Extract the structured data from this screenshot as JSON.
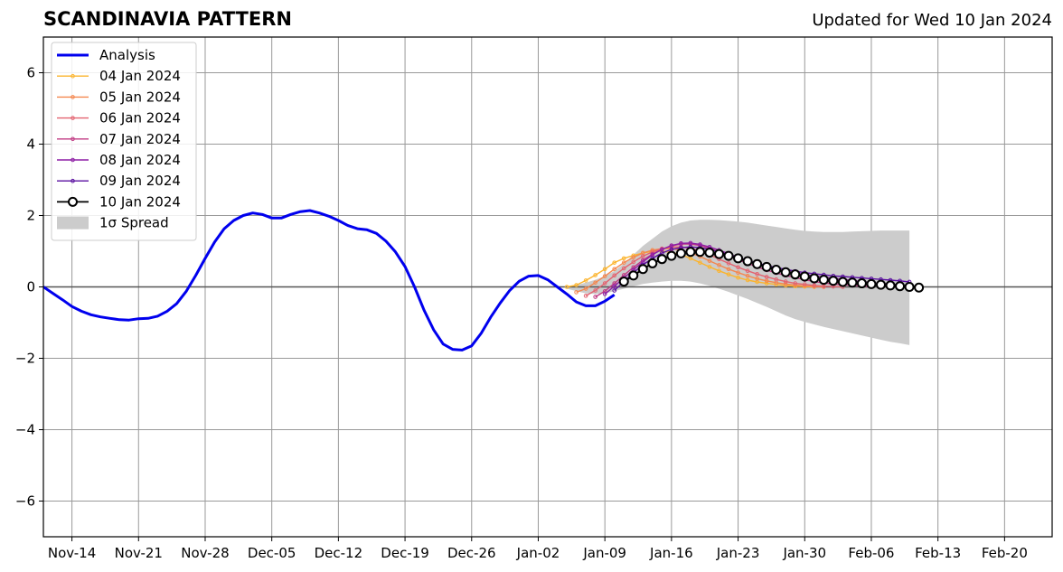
{
  "chart_data": {
    "type": "line",
    "title": "SCANDINAVIA PATTERN",
    "subtitle": "Updated for Wed 10 Jan 2024",
    "xlabel": "",
    "ylabel": "",
    "x_type": "date",
    "xlim": [
      "2023-11-11",
      "2024-02-25"
    ],
    "ylim": [
      -7,
      7
    ],
    "x_ticks": [
      {
        "date": "2023-11-14",
        "label": "Nov-14"
      },
      {
        "date": "2023-11-21",
        "label": "Nov-21"
      },
      {
        "date": "2023-11-28",
        "label": "Nov-28"
      },
      {
        "date": "2023-12-05",
        "label": "Dec-05"
      },
      {
        "date": "2023-12-12",
        "label": "Dec-12"
      },
      {
        "date": "2023-12-19",
        "label": "Dec-19"
      },
      {
        "date": "2023-12-26",
        "label": "Dec-26"
      },
      {
        "date": "2024-01-02",
        "label": "Jan-02"
      },
      {
        "date": "2024-01-09",
        "label": "Jan-09"
      },
      {
        "date": "2024-01-16",
        "label": "Jan-16"
      },
      {
        "date": "2024-01-23",
        "label": "Jan-23"
      },
      {
        "date": "2024-01-30",
        "label": "Jan-30"
      },
      {
        "date": "2024-02-06",
        "label": "Feb-06"
      },
      {
        "date": "2024-02-13",
        "label": "Feb-13"
      },
      {
        "date": "2024-02-20",
        "label": "Feb-20"
      }
    ],
    "y_ticks": [
      {
        "value": -6,
        "label": "−6"
      },
      {
        "value": -4,
        "label": "−4"
      },
      {
        "value": -2,
        "label": "−2"
      },
      {
        "value": 0,
        "label": "0"
      },
      {
        "value": 2,
        "label": "2"
      },
      {
        "value": 4,
        "label": "4"
      },
      {
        "value": 6,
        "label": "6"
      }
    ],
    "grid": true,
    "legend_position": "top-left",
    "colors": {
      "analysis": "#0000ee",
      "spread": "#cccccc",
      "forecast_10": "#000000",
      "zero_line": "#555555",
      "grid": "#999999"
    },
    "analysis": {
      "name": "Analysis",
      "x": [
        "2023-11-11",
        "2023-11-12",
        "2023-11-13",
        "2023-11-14",
        "2023-11-15",
        "2023-11-16",
        "2023-11-17",
        "2023-11-18",
        "2023-11-19",
        "2023-11-20",
        "2023-11-21",
        "2023-11-22",
        "2023-11-23",
        "2023-11-24",
        "2023-11-25",
        "2023-11-26",
        "2023-11-27",
        "2023-11-28",
        "2023-11-29",
        "2023-11-30",
        "2023-12-01",
        "2023-12-02",
        "2023-12-03",
        "2023-12-04",
        "2023-12-05",
        "2023-12-06",
        "2023-12-07",
        "2023-12-08",
        "2023-12-09",
        "2023-12-10",
        "2023-12-11",
        "2023-12-12",
        "2023-12-13",
        "2023-12-14",
        "2023-12-15",
        "2023-12-16",
        "2023-12-17",
        "2023-12-18",
        "2023-12-19",
        "2023-12-20",
        "2023-12-21",
        "2023-12-22",
        "2023-12-23",
        "2023-12-24",
        "2023-12-25",
        "2023-12-26",
        "2023-12-27",
        "2023-12-28",
        "2023-12-29",
        "2023-12-30",
        "2023-12-31",
        "2024-01-01",
        "2024-01-02",
        "2024-01-03",
        "2024-01-04",
        "2024-01-05",
        "2024-01-06",
        "2024-01-07",
        "2024-01-08",
        "2024-01-09",
        "2024-01-10"
      ],
      "y": [
        0.0,
        -0.18,
        -0.36,
        -0.55,
        -0.68,
        -0.78,
        -0.84,
        -0.88,
        -0.92,
        -0.93,
        -0.89,
        -0.88,
        -0.82,
        -0.68,
        -0.47,
        -0.13,
        0.32,
        0.8,
        1.26,
        1.63,
        1.86,
        2.0,
        2.07,
        2.03,
        1.93,
        1.93,
        2.03,
        2.11,
        2.14,
        2.07,
        1.98,
        1.86,
        1.72,
        1.63,
        1.6,
        1.5,
        1.28,
        0.98,
        0.57,
        0.0,
        -0.65,
        -1.2,
        -1.6,
        -1.75,
        -1.77,
        -1.65,
        -1.3,
        -0.85,
        -0.45,
        -0.1,
        0.16,
        0.3,
        0.32,
        0.2,
        0.0,
        -0.2,
        -0.42,
        -0.53,
        -0.53,
        -0.4,
        -0.22
      ]
    },
    "spread": {
      "name": "1σ Spread",
      "x": [
        "2024-01-05",
        "2024-01-06",
        "2024-01-07",
        "2024-01-08",
        "2024-01-09",
        "2024-01-10",
        "2024-01-11",
        "2024-01-12",
        "2024-01-13",
        "2024-01-14",
        "2024-01-15",
        "2024-01-16",
        "2024-01-17",
        "2024-01-18",
        "2024-01-19",
        "2024-01-20",
        "2024-01-21",
        "2024-01-22",
        "2024-01-23",
        "2024-01-24",
        "2024-01-25",
        "2024-01-26",
        "2024-01-27",
        "2024-01-28",
        "2024-01-29",
        "2024-01-30",
        "2024-01-31",
        "2024-02-01",
        "2024-02-02",
        "2024-02-03",
        "2024-02-04",
        "2024-02-05",
        "2024-02-06",
        "2024-02-07",
        "2024-02-08",
        "2024-02-09",
        "2024-02-10"
      ],
      "upper": [
        0.0,
        0.05,
        0.12,
        0.2,
        0.3,
        0.45,
        0.65,
        0.9,
        1.15,
        1.35,
        1.55,
        1.7,
        1.8,
        1.86,
        1.88,
        1.88,
        1.87,
        1.85,
        1.83,
        1.8,
        1.76,
        1.72,
        1.68,
        1.64,
        1.6,
        1.57,
        1.55,
        1.54,
        1.54,
        1.54,
        1.55,
        1.56,
        1.57,
        1.58,
        1.58,
        1.58,
        1.58
      ],
      "lower": [
        -0.05,
        -0.12,
        -0.18,
        -0.2,
        -0.18,
        -0.12,
        -0.05,
        0.02,
        0.08,
        0.12,
        0.15,
        0.17,
        0.17,
        0.15,
        0.1,
        0.03,
        -0.05,
        -0.14,
        -0.24,
        -0.34,
        -0.45,
        -0.56,
        -0.68,
        -0.8,
        -0.9,
        -0.98,
        -1.05,
        -1.12,
        -1.18,
        -1.24,
        -1.3,
        -1.36,
        -1.42,
        -1.48,
        -1.54,
        -1.58,
        -1.63
      ]
    },
    "forecasts": [
      {
        "name": "04 Jan 2024",
        "color": "#fbb42e",
        "x": [
          "2024-01-05",
          "2024-01-06",
          "2024-01-07",
          "2024-01-08",
          "2024-01-09",
          "2024-01-10",
          "2024-01-11",
          "2024-01-12",
          "2024-01-13",
          "2024-01-14",
          "2024-01-15",
          "2024-01-16",
          "2024-01-17",
          "2024-01-18",
          "2024-01-19",
          "2024-01-20",
          "2024-01-21",
          "2024-01-22",
          "2024-01-23",
          "2024-01-24",
          "2024-01-25",
          "2024-01-26",
          "2024-01-27",
          "2024-01-28",
          "2024-01-29",
          "2024-01-30",
          "2024-01-31"
        ],
        "y": [
          0.0,
          0.05,
          0.18,
          0.33,
          0.5,
          0.68,
          0.8,
          0.88,
          0.95,
          1.0,
          1.0,
          0.97,
          0.9,
          0.8,
          0.68,
          0.56,
          0.45,
          0.35,
          0.26,
          0.19,
          0.14,
          0.1,
          0.07,
          0.04,
          0.02,
          0.01,
          0.0
        ]
      },
      {
        "name": "05 Jan 2024",
        "color": "#f4874f",
        "x": [
          "2024-01-06",
          "2024-01-07",
          "2024-01-08",
          "2024-01-09",
          "2024-01-10",
          "2024-01-11",
          "2024-01-12",
          "2024-01-13",
          "2024-01-14",
          "2024-01-15",
          "2024-01-16",
          "2024-01-17",
          "2024-01-18",
          "2024-01-19",
          "2024-01-20",
          "2024-01-21",
          "2024-01-22",
          "2024-01-23",
          "2024-01-24",
          "2024-01-25",
          "2024-01-26",
          "2024-01-27",
          "2024-01-28",
          "2024-01-29",
          "2024-01-30",
          "2024-01-31",
          "2024-02-01"
        ],
        "y": [
          -0.15,
          -0.05,
          0.12,
          0.3,
          0.5,
          0.68,
          0.83,
          0.95,
          1.03,
          1.07,
          1.07,
          1.03,
          0.95,
          0.85,
          0.73,
          0.61,
          0.5,
          0.4,
          0.31,
          0.23,
          0.17,
          0.12,
          0.08,
          0.05,
          0.03,
          0.01,
          0.0
        ]
      },
      {
        "name": "06 Jan 2024",
        "color": "#e36370",
        "x": [
          "2024-01-07",
          "2024-01-08",
          "2024-01-09",
          "2024-01-10",
          "2024-01-11",
          "2024-01-12",
          "2024-01-13",
          "2024-01-14",
          "2024-01-15",
          "2024-01-16",
          "2024-01-17",
          "2024-01-18",
          "2024-01-19",
          "2024-01-20",
          "2024-01-21",
          "2024-01-22",
          "2024-01-23",
          "2024-01-24",
          "2024-01-25",
          "2024-01-26",
          "2024-01-27",
          "2024-01-28",
          "2024-01-29",
          "2024-01-30",
          "2024-01-31",
          "2024-02-01",
          "2024-02-02",
          "2024-02-03"
        ],
        "y": [
          -0.25,
          -0.1,
          0.1,
          0.32,
          0.52,
          0.7,
          0.86,
          0.98,
          1.07,
          1.12,
          1.12,
          1.08,
          1.0,
          0.9,
          0.78,
          0.66,
          0.55,
          0.45,
          0.36,
          0.28,
          0.21,
          0.15,
          0.1,
          0.07,
          0.04,
          0.02,
          0.01,
          0.0
        ]
      },
      {
        "name": "07 Jan 2024",
        "color": "#c03a83",
        "x": [
          "2024-01-08",
          "2024-01-09",
          "2024-01-10",
          "2024-01-11",
          "2024-01-12",
          "2024-01-13",
          "2024-01-14",
          "2024-01-15",
          "2024-01-16",
          "2024-01-17",
          "2024-01-18",
          "2024-01-19",
          "2024-01-20",
          "2024-01-21",
          "2024-01-22",
          "2024-01-23",
          "2024-01-24",
          "2024-01-25",
          "2024-01-26",
          "2024-01-27",
          "2024-01-28",
          "2024-01-29",
          "2024-01-30",
          "2024-01-31",
          "2024-02-01",
          "2024-02-02",
          "2024-02-03",
          "2024-02-04",
          "2024-02-05",
          "2024-02-06"
        ],
        "y": [
          -0.28,
          -0.12,
          0.1,
          0.33,
          0.55,
          0.75,
          0.92,
          1.05,
          1.15,
          1.2,
          1.2,
          1.16,
          1.08,
          0.98,
          0.87,
          0.76,
          0.66,
          0.56,
          0.47,
          0.39,
          0.32,
          0.26,
          0.2,
          0.15,
          0.11,
          0.08,
          0.06,
          0.04,
          0.02,
          0.01
        ]
      },
      {
        "name": "08 Jan 2024",
        "color": "#8e1fa5",
        "x": [
          "2024-01-09",
          "2024-01-10",
          "2024-01-11",
          "2024-01-12",
          "2024-01-13",
          "2024-01-14",
          "2024-01-15",
          "2024-01-16",
          "2024-01-17",
          "2024-01-18",
          "2024-01-19",
          "2024-01-20",
          "2024-01-21",
          "2024-01-22",
          "2024-01-23",
          "2024-01-24",
          "2024-01-25",
          "2024-01-26",
          "2024-01-27",
          "2024-01-28",
          "2024-01-29",
          "2024-01-30",
          "2024-01-31",
          "2024-02-01",
          "2024-02-02",
          "2024-02-03",
          "2024-02-04",
          "2024-02-05",
          "2024-02-06",
          "2024-02-07",
          "2024-02-08",
          "2024-02-09"
        ],
        "y": [
          -0.2,
          0.02,
          0.25,
          0.48,
          0.7,
          0.9,
          1.05,
          1.16,
          1.22,
          1.23,
          1.19,
          1.12,
          1.03,
          0.93,
          0.83,
          0.74,
          0.65,
          0.57,
          0.5,
          0.44,
          0.39,
          0.35,
          0.31,
          0.27,
          0.24,
          0.21,
          0.18,
          0.15,
          0.12,
          0.1,
          0.08,
          0.06
        ]
      },
      {
        "name": "09 Jan 2024",
        "color": "#5a0fa0",
        "x": [
          "2024-01-10",
          "2024-01-11",
          "2024-01-12",
          "2024-01-13",
          "2024-01-14",
          "2024-01-15",
          "2024-01-16",
          "2024-01-17",
          "2024-01-18",
          "2024-01-19",
          "2024-01-20",
          "2024-01-21",
          "2024-01-22",
          "2024-01-23",
          "2024-01-24",
          "2024-01-25",
          "2024-01-26",
          "2024-01-27",
          "2024-01-28",
          "2024-01-29",
          "2024-01-30",
          "2024-01-31",
          "2024-02-01",
          "2024-02-02",
          "2024-02-03",
          "2024-02-04",
          "2024-02-05",
          "2024-02-06",
          "2024-02-07",
          "2024-02-08",
          "2024-02-09",
          "2024-02-10"
        ],
        "y": [
          -0.1,
          0.15,
          0.4,
          0.62,
          0.8,
          0.95,
          1.05,
          1.1,
          1.12,
          1.1,
          1.05,
          0.98,
          0.9,
          0.82,
          0.74,
          0.67,
          0.6,
          0.54,
          0.49,
          0.44,
          0.4,
          0.37,
          0.34,
          0.31,
          0.29,
          0.27,
          0.25,
          0.23,
          0.21,
          0.19,
          0.17,
          0.14
        ]
      },
      {
        "name": "10 Jan 2024",
        "color": "#000000",
        "x": [
          "2024-01-11",
          "2024-01-12",
          "2024-01-13",
          "2024-01-14",
          "2024-01-15",
          "2024-01-16",
          "2024-01-17",
          "2024-01-18",
          "2024-01-19",
          "2024-01-20",
          "2024-01-21",
          "2024-01-22",
          "2024-01-23",
          "2024-01-24",
          "2024-01-25",
          "2024-01-26",
          "2024-01-27",
          "2024-01-28",
          "2024-01-29",
          "2024-01-30",
          "2024-01-31",
          "2024-02-01",
          "2024-02-02",
          "2024-02-03",
          "2024-02-04",
          "2024-02-05",
          "2024-02-06",
          "2024-02-07",
          "2024-02-08",
          "2024-02-09",
          "2024-02-10",
          "2024-02-11"
        ],
        "y": [
          0.15,
          0.32,
          0.5,
          0.66,
          0.78,
          0.87,
          0.94,
          0.98,
          0.98,
          0.96,
          0.92,
          0.87,
          0.8,
          0.72,
          0.64,
          0.56,
          0.48,
          0.41,
          0.35,
          0.29,
          0.24,
          0.2,
          0.17,
          0.14,
          0.12,
          0.1,
          0.08,
          0.06,
          0.04,
          0.02,
          0.0,
          -0.02
        ]
      }
    ]
  }
}
